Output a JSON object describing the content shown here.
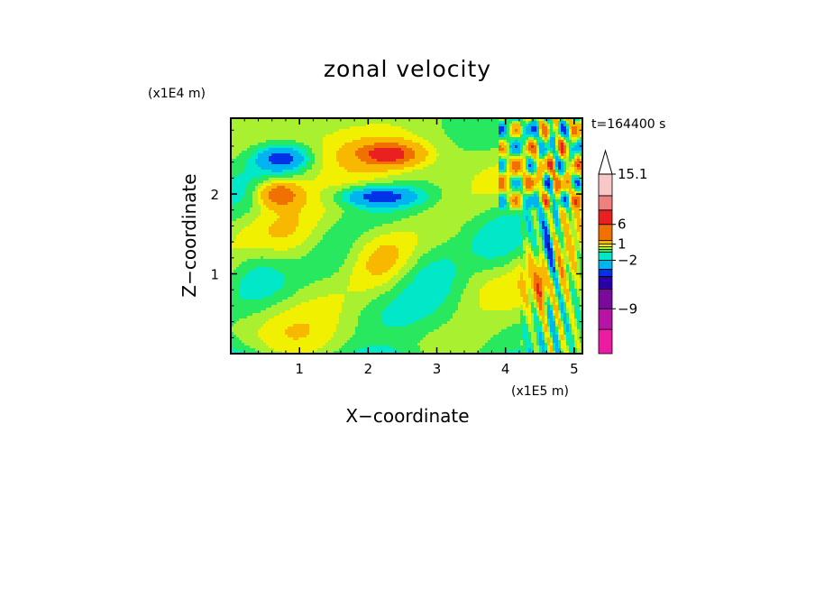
{
  "chart_data": {
    "type": "heatmap",
    "title": "zonal velocity",
    "xlabel": "X−coordinate",
    "ylabel": "Z−coordinate",
    "x_unit": "(x1E5 m)",
    "y_unit": "(x1E4 m)",
    "time_label": "t=164400 s",
    "xlim": [
      0,
      5.12
    ],
    "ylim": [
      0,
      2.95
    ],
    "x_ticks": [
      1,
      2,
      3,
      4,
      5
    ],
    "x_tick_labels": [
      "1",
      "2",
      "3",
      "4",
      "5"
    ],
    "y_ticks": [
      1,
      2
    ],
    "y_tick_labels": [
      "1",
      "2"
    ],
    "colorbar": {
      "levels": [
        -15,
        -12,
        -9,
        -6,
        -4,
        -2,
        -1,
        0,
        1,
        2,
        4,
        6,
        9,
        12,
        15.1
      ],
      "labels": [
        "15.1",
        "6",
        "1",
        "−2",
        "−9"
      ],
      "label_values": [
        15.1,
        6,
        1,
        -2,
        -9
      ],
      "colors": [
        "#ec1ca2",
        "#b514a4",
        "#7a0a9c",
        "#2a00a6",
        "#0032e8",
        "#00b4f0",
        "#00e8c8",
        "#28e860",
        "#a8f030",
        "#f0f000",
        "#f8b800",
        "#f07000",
        "#e82020",
        "#f08080",
        "#f8c8c8"
      ],
      "extend_max": true
    },
    "features": [
      {
        "x": 0.75,
        "z": 2.45,
        "value": -5,
        "sx": 0.38,
        "sz": 0.16,
        "note": "blue jet"
      },
      {
        "x": 2.15,
        "z": 1.97,
        "value": -5,
        "sx": 0.55,
        "sz": 0.12
      },
      {
        "x": 0.7,
        "z": 2.0,
        "value": 6,
        "sx": 0.3,
        "sz": 0.16
      },
      {
        "x": 2.3,
        "z": 2.5,
        "value": 6,
        "sx": 0.45,
        "sz": 0.14
      },
      {
        "x": 4.6,
        "z": 1.1,
        "value": -9,
        "sx": 0.12,
        "sz": 0.45
      },
      {
        "x": 4.55,
        "z": 0.9,
        "value": 9,
        "sx": 0.1,
        "sz": 0.35
      }
    ]
  }
}
